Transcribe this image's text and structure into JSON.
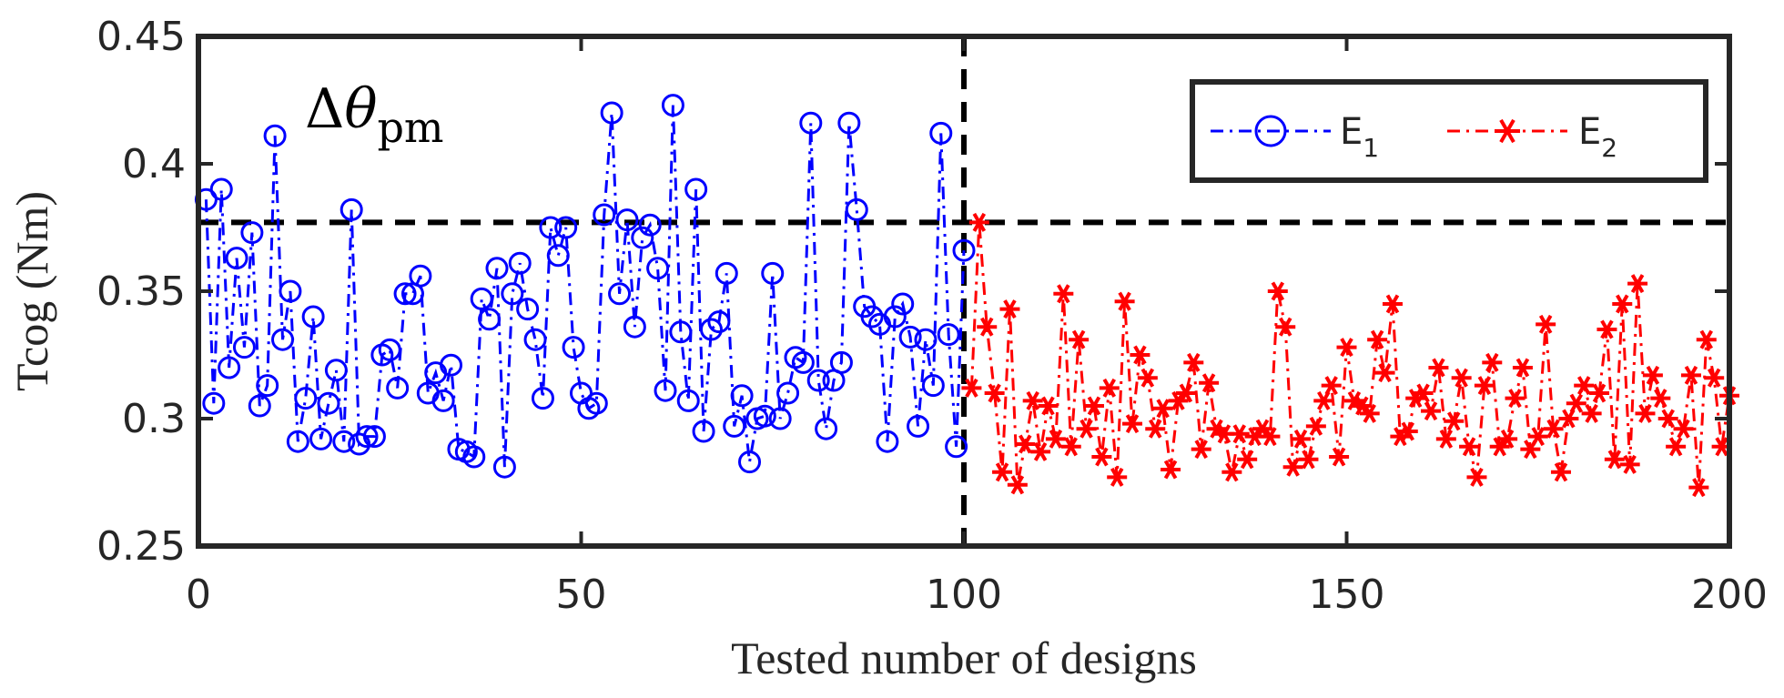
{
  "chart_data": {
    "type": "line",
    "xlabel": "Tested number of designs",
    "ylabel": "Tcog  (Nm)",
    "xlim": [
      0,
      200
    ],
    "ylim": [
      0.25,
      0.45
    ],
    "xticks": [
      0,
      50,
      100,
      150,
      200
    ],
    "yticks": [
      0.25,
      0.3,
      0.35,
      0.4,
      0.45
    ],
    "xtick_labels": [
      "0",
      "50",
      "100",
      "150",
      "200"
    ],
    "ytick_labels": [
      "0.25",
      "0.3",
      "0.35",
      "0.4",
      "0.45"
    ],
    "annotation": {
      "delta": "Δ",
      "theta": "θ",
      "subscript": "pm"
    },
    "reference_lines": [
      {
        "orientation": "horizontal",
        "value": 0.377,
        "style": "dashed",
        "color": "#000000"
      },
      {
        "orientation": "vertical",
        "value": 100,
        "style": "dashed",
        "color": "#000000"
      }
    ],
    "legend_position": "top-right",
    "series": [
      {
        "name": "E1",
        "label_main": "E",
        "label_sub": "1",
        "color": "#0000ff",
        "marker": "circle",
        "line_style": "dash-dot",
        "x_start": 1,
        "values": [
          0.386,
          0.306,
          0.39,
          0.32,
          0.363,
          0.328,
          0.373,
          0.305,
          0.313,
          0.411,
          0.331,
          0.35,
          0.291,
          0.308,
          0.34,
          0.292,
          0.306,
          0.319,
          0.291,
          0.382,
          0.29,
          0.293,
          0.293,
          0.325,
          0.327,
          0.312,
          0.349,
          0.349,
          0.356,
          0.31,
          0.318,
          0.307,
          0.321,
          0.288,
          0.287,
          0.285,
          0.347,
          0.339,
          0.359,
          0.281,
          0.349,
          0.361,
          0.343,
          0.331,
          0.308,
          0.375,
          0.364,
          0.375,
          0.328,
          0.31,
          0.304,
          0.306,
          0.38,
          0.42,
          0.349,
          0.378,
          0.336,
          0.371,
          0.376,
          0.359,
          0.311,
          0.423,
          0.334,
          0.307,
          0.39,
          0.295,
          0.335,
          0.338,
          0.357,
          0.297,
          0.309,
          0.283,
          0.3,
          0.301,
          0.357,
          0.3,
          0.31,
          0.324,
          0.322,
          0.416,
          0.315,
          0.296,
          0.315,
          0.322,
          0.416,
          0.382,
          0.344,
          0.34,
          0.337,
          0.291,
          0.34,
          0.345,
          0.332,
          0.297,
          0.331,
          0.313,
          0.412,
          0.333,
          0.289,
          0.366
        ]
      },
      {
        "name": "E2",
        "label_main": "E",
        "label_sub": "2",
        "color": "#ff0000",
        "marker": "asterisk",
        "line_style": "dash-dot",
        "x_start": 101,
        "values": [
          0.312,
          0.377,
          0.336,
          0.31,
          0.279,
          0.343,
          0.274,
          0.29,
          0.307,
          0.287,
          0.305,
          0.292,
          0.349,
          0.289,
          0.331,
          0.296,
          0.305,
          0.285,
          0.312,
          0.277,
          0.346,
          0.298,
          0.325,
          0.316,
          0.296,
          0.304,
          0.28,
          0.307,
          0.31,
          0.322,
          0.288,
          0.314,
          0.296,
          0.294,
          0.279,
          0.294,
          0.284,
          0.293,
          0.296,
          0.293,
          0.35,
          0.336,
          0.281,
          0.292,
          0.284,
          0.297,
          0.307,
          0.313,
          0.285,
          0.328,
          0.307,
          0.305,
          0.302,
          0.331,
          0.318,
          0.345,
          0.293,
          0.295,
          0.308,
          0.31,
          0.303,
          0.32,
          0.292,
          0.299,
          0.316,
          0.289,
          0.277,
          0.313,
          0.322,
          0.289,
          0.292,
          0.308,
          0.32,
          0.288,
          0.293,
          0.337,
          0.296,
          0.279,
          0.3,
          0.306,
          0.313,
          0.302,
          0.31,
          0.335,
          0.284,
          0.345,
          0.282,
          0.353,
          0.302,
          0.317,
          0.308,
          0.3,
          0.289,
          0.296,
          0.317,
          0.273,
          0.331,
          0.316,
          0.289,
          0.309
        ]
      }
    ]
  }
}
